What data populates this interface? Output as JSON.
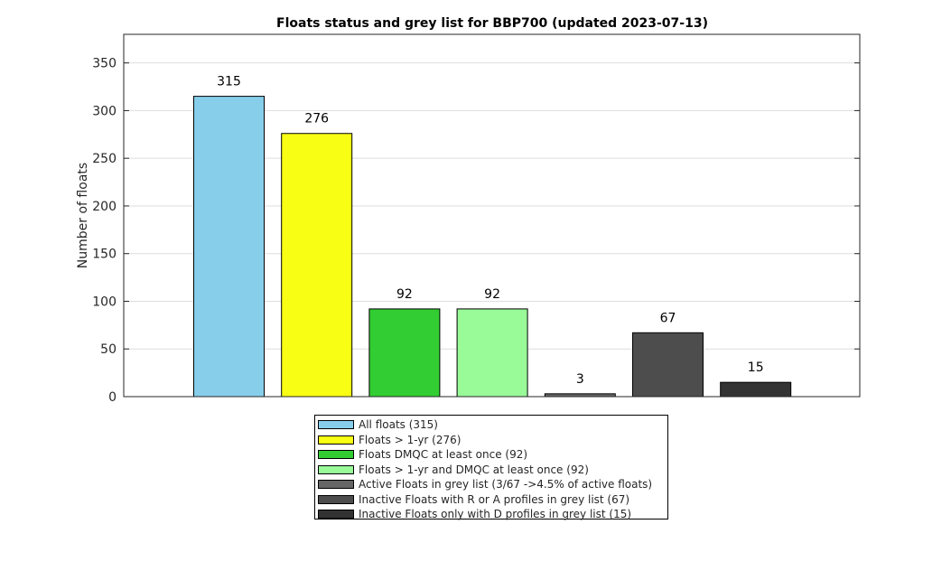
{
  "chart_data": {
    "type": "bar",
    "title": "Floats status and grey list for BBP700 (updated 2023-07-13)",
    "xlabel": "",
    "ylabel": "Number of floats",
    "ylim": [
      0,
      380
    ],
    "yticks": [
      0,
      50,
      100,
      150,
      200,
      250,
      300,
      350
    ],
    "grid": "horizontal",
    "legend_position": "bottom-outside",
    "series": [
      {
        "name": "All floats (315)",
        "value": 315,
        "label": "315",
        "color": "#87ceeb"
      },
      {
        "name": "Floats > 1-yr (276)",
        "value": 276,
        "label": "276",
        "color": "#f9ff14"
      },
      {
        "name": "Floats DMQC at least once (92)",
        "value": 92,
        "label": "92",
        "color": "#32cd32"
      },
      {
        "name": "Floats > 1-yr and DMQC at least once (92)",
        "value": 92,
        "label": "92",
        "color": "#98fb98"
      },
      {
        "name": "Active Floats in grey list (3/67 ->4.5% of active floats)",
        "value": 3,
        "label": "3",
        "color": "#666666"
      },
      {
        "name": "Inactive Floats with R or A profiles in grey list (67)",
        "value": 67,
        "label": "67",
        "color": "#4d4d4d"
      },
      {
        "name": "Inactive Floats only with D profiles in grey list (15)",
        "value": 15,
        "label": "15",
        "color": "#333333"
      }
    ]
  }
}
